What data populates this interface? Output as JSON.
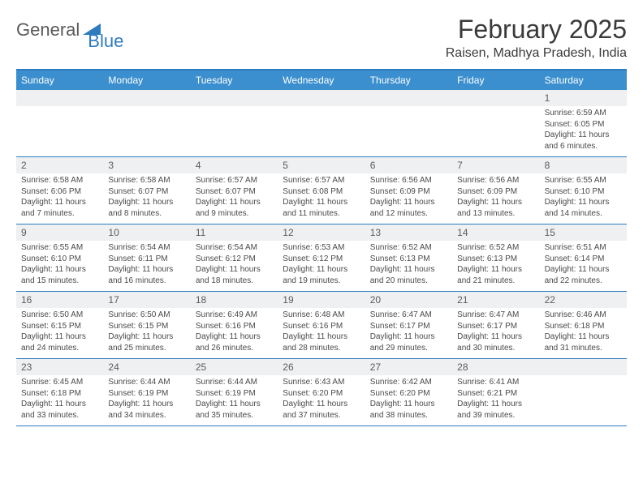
{
  "logo": {
    "text1": "General",
    "text2": "Blue"
  },
  "title": "February 2025",
  "location": "Raisen, Madhya Pradesh, India",
  "colors": {
    "header_bg": "#3b8fce",
    "border": "#2f7bbf",
    "daynum_bg": "#eef0f1",
    "text": "#3a3a3a"
  },
  "day_names": [
    "Sunday",
    "Monday",
    "Tuesday",
    "Wednesday",
    "Thursday",
    "Friday",
    "Saturday"
  ],
  "weeks": [
    [
      {
        "n": "",
        "sr": "",
        "ss": "",
        "dl": ""
      },
      {
        "n": "",
        "sr": "",
        "ss": "",
        "dl": ""
      },
      {
        "n": "",
        "sr": "",
        "ss": "",
        "dl": ""
      },
      {
        "n": "",
        "sr": "",
        "ss": "",
        "dl": ""
      },
      {
        "n": "",
        "sr": "",
        "ss": "",
        "dl": ""
      },
      {
        "n": "",
        "sr": "",
        "ss": "",
        "dl": ""
      },
      {
        "n": "1",
        "sr": "Sunrise: 6:59 AM",
        "ss": "Sunset: 6:05 PM",
        "dl": "Daylight: 11 hours and 6 minutes."
      }
    ],
    [
      {
        "n": "2",
        "sr": "Sunrise: 6:58 AM",
        "ss": "Sunset: 6:06 PM",
        "dl": "Daylight: 11 hours and 7 minutes."
      },
      {
        "n": "3",
        "sr": "Sunrise: 6:58 AM",
        "ss": "Sunset: 6:07 PM",
        "dl": "Daylight: 11 hours and 8 minutes."
      },
      {
        "n": "4",
        "sr": "Sunrise: 6:57 AM",
        "ss": "Sunset: 6:07 PM",
        "dl": "Daylight: 11 hours and 9 minutes."
      },
      {
        "n": "5",
        "sr": "Sunrise: 6:57 AM",
        "ss": "Sunset: 6:08 PM",
        "dl": "Daylight: 11 hours and 11 minutes."
      },
      {
        "n": "6",
        "sr": "Sunrise: 6:56 AM",
        "ss": "Sunset: 6:09 PM",
        "dl": "Daylight: 11 hours and 12 minutes."
      },
      {
        "n": "7",
        "sr": "Sunrise: 6:56 AM",
        "ss": "Sunset: 6:09 PM",
        "dl": "Daylight: 11 hours and 13 minutes."
      },
      {
        "n": "8",
        "sr": "Sunrise: 6:55 AM",
        "ss": "Sunset: 6:10 PM",
        "dl": "Daylight: 11 hours and 14 minutes."
      }
    ],
    [
      {
        "n": "9",
        "sr": "Sunrise: 6:55 AM",
        "ss": "Sunset: 6:10 PM",
        "dl": "Daylight: 11 hours and 15 minutes."
      },
      {
        "n": "10",
        "sr": "Sunrise: 6:54 AM",
        "ss": "Sunset: 6:11 PM",
        "dl": "Daylight: 11 hours and 16 minutes."
      },
      {
        "n": "11",
        "sr": "Sunrise: 6:54 AM",
        "ss": "Sunset: 6:12 PM",
        "dl": "Daylight: 11 hours and 18 minutes."
      },
      {
        "n": "12",
        "sr": "Sunrise: 6:53 AM",
        "ss": "Sunset: 6:12 PM",
        "dl": "Daylight: 11 hours and 19 minutes."
      },
      {
        "n": "13",
        "sr": "Sunrise: 6:52 AM",
        "ss": "Sunset: 6:13 PM",
        "dl": "Daylight: 11 hours and 20 minutes."
      },
      {
        "n": "14",
        "sr": "Sunrise: 6:52 AM",
        "ss": "Sunset: 6:13 PM",
        "dl": "Daylight: 11 hours and 21 minutes."
      },
      {
        "n": "15",
        "sr": "Sunrise: 6:51 AM",
        "ss": "Sunset: 6:14 PM",
        "dl": "Daylight: 11 hours and 22 minutes."
      }
    ],
    [
      {
        "n": "16",
        "sr": "Sunrise: 6:50 AM",
        "ss": "Sunset: 6:15 PM",
        "dl": "Daylight: 11 hours and 24 minutes."
      },
      {
        "n": "17",
        "sr": "Sunrise: 6:50 AM",
        "ss": "Sunset: 6:15 PM",
        "dl": "Daylight: 11 hours and 25 minutes."
      },
      {
        "n": "18",
        "sr": "Sunrise: 6:49 AM",
        "ss": "Sunset: 6:16 PM",
        "dl": "Daylight: 11 hours and 26 minutes."
      },
      {
        "n": "19",
        "sr": "Sunrise: 6:48 AM",
        "ss": "Sunset: 6:16 PM",
        "dl": "Daylight: 11 hours and 28 minutes."
      },
      {
        "n": "20",
        "sr": "Sunrise: 6:47 AM",
        "ss": "Sunset: 6:17 PM",
        "dl": "Daylight: 11 hours and 29 minutes."
      },
      {
        "n": "21",
        "sr": "Sunrise: 6:47 AM",
        "ss": "Sunset: 6:17 PM",
        "dl": "Daylight: 11 hours and 30 minutes."
      },
      {
        "n": "22",
        "sr": "Sunrise: 6:46 AM",
        "ss": "Sunset: 6:18 PM",
        "dl": "Daylight: 11 hours and 31 minutes."
      }
    ],
    [
      {
        "n": "23",
        "sr": "Sunrise: 6:45 AM",
        "ss": "Sunset: 6:18 PM",
        "dl": "Daylight: 11 hours and 33 minutes."
      },
      {
        "n": "24",
        "sr": "Sunrise: 6:44 AM",
        "ss": "Sunset: 6:19 PM",
        "dl": "Daylight: 11 hours and 34 minutes."
      },
      {
        "n": "25",
        "sr": "Sunrise: 6:44 AM",
        "ss": "Sunset: 6:19 PM",
        "dl": "Daylight: 11 hours and 35 minutes."
      },
      {
        "n": "26",
        "sr": "Sunrise: 6:43 AM",
        "ss": "Sunset: 6:20 PM",
        "dl": "Daylight: 11 hours and 37 minutes."
      },
      {
        "n": "27",
        "sr": "Sunrise: 6:42 AM",
        "ss": "Sunset: 6:20 PM",
        "dl": "Daylight: 11 hours and 38 minutes."
      },
      {
        "n": "28",
        "sr": "Sunrise: 6:41 AM",
        "ss": "Sunset: 6:21 PM",
        "dl": "Daylight: 11 hours and 39 minutes."
      },
      {
        "n": "",
        "sr": "",
        "ss": "",
        "dl": ""
      }
    ]
  ]
}
